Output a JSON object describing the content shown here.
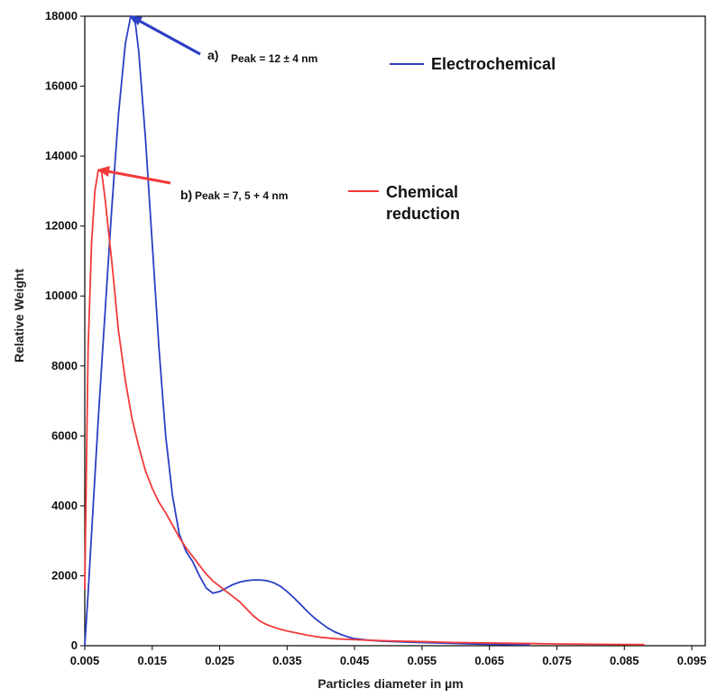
{
  "colors": {
    "electrochemical": "#2b3fc4",
    "chemical": "#f23a3a",
    "axis": "#000000"
  },
  "chart_data": {
    "type": "line",
    "title": "",
    "xlabel": "Particles diameter in  µm",
    "ylabel": "Relative Weight",
    "xlim": [
      0.005,
      0.097
    ],
    "ylim": [
      0,
      18000
    ],
    "x_ticks": [
      0.005,
      0.015,
      0.025,
      0.035,
      0.045,
      0.055,
      0.065,
      0.075,
      0.085,
      0.095
    ],
    "x_tick_labels": [
      "0.005",
      "0.015",
      "0.025",
      "0.035",
      "0.045",
      "0.055",
      "0.065",
      "0.075",
      "0.085",
      "0.095"
    ],
    "y_ticks": [
      0,
      2000,
      4000,
      6000,
      8000,
      10000,
      12000,
      14000,
      16000,
      18000
    ],
    "y_tick_labels": [
      "0",
      "2000",
      "4000",
      "6000",
      "8000",
      "10000",
      "12000",
      "14000",
      "16000",
      "18000"
    ],
    "grid": false,
    "series": [
      {
        "name": "Electrochemical",
        "color": "#2b3fc4",
        "points": [
          [
            0.005,
            0
          ],
          [
            0.0055,
            1500
          ],
          [
            0.006,
            3200
          ],
          [
            0.007,
            6500
          ],
          [
            0.008,
            9500
          ],
          [
            0.009,
            12500
          ],
          [
            0.01,
            15200
          ],
          [
            0.011,
            17200
          ],
          [
            0.0118,
            18000
          ],
          [
            0.0125,
            17800
          ],
          [
            0.013,
            17000
          ],
          [
            0.014,
            14500
          ],
          [
            0.015,
            11500
          ],
          [
            0.016,
            8500
          ],
          [
            0.017,
            6000
          ],
          [
            0.018,
            4300
          ],
          [
            0.019,
            3200
          ],
          [
            0.02,
            2700
          ],
          [
            0.021,
            2400
          ],
          [
            0.022,
            2000
          ],
          [
            0.023,
            1650
          ],
          [
            0.024,
            1500
          ],
          [
            0.025,
            1550
          ],
          [
            0.026,
            1650
          ],
          [
            0.027,
            1750
          ],
          [
            0.028,
            1820
          ],
          [
            0.029,
            1860
          ],
          [
            0.03,
            1880
          ],
          [
            0.031,
            1880
          ],
          [
            0.032,
            1860
          ],
          [
            0.033,
            1800
          ],
          [
            0.034,
            1700
          ],
          [
            0.035,
            1550
          ],
          [
            0.036,
            1370
          ],
          [
            0.037,
            1180
          ],
          [
            0.038,
            980
          ],
          [
            0.039,
            800
          ],
          [
            0.04,
            650
          ],
          [
            0.041,
            510
          ],
          [
            0.042,
            400
          ],
          [
            0.043,
            320
          ],
          [
            0.044,
            250
          ],
          [
            0.045,
            200
          ],
          [
            0.047,
            160
          ],
          [
            0.049,
            130
          ],
          [
            0.051,
            115
          ],
          [
            0.053,
            100
          ],
          [
            0.055,
            90
          ],
          [
            0.058,
            75
          ],
          [
            0.061,
            60
          ],
          [
            0.064,
            45
          ],
          [
            0.067,
            35
          ],
          [
            0.07,
            25
          ],
          [
            0.071,
            20
          ]
        ]
      },
      {
        "name": "Chemical reduction",
        "color": "#f23a3a",
        "points": [
          [
            0.005,
            1600
          ],
          [
            0.0052,
            4500
          ],
          [
            0.0055,
            8500
          ],
          [
            0.006,
            11500
          ],
          [
            0.0065,
            13000
          ],
          [
            0.007,
            13600
          ],
          [
            0.0075,
            13550
          ],
          [
            0.008,
            12800
          ],
          [
            0.009,
            11000
          ],
          [
            0.01,
            9000
          ],
          [
            0.011,
            7600
          ],
          [
            0.012,
            6500
          ],
          [
            0.013,
            5700
          ],
          [
            0.014,
            5000
          ],
          [
            0.015,
            4500
          ],
          [
            0.016,
            4100
          ],
          [
            0.017,
            3800
          ],
          [
            0.018,
            3450
          ],
          [
            0.019,
            3100
          ],
          [
            0.02,
            2800
          ],
          [
            0.021,
            2550
          ],
          [
            0.022,
            2300
          ],
          [
            0.023,
            2050
          ],
          [
            0.024,
            1850
          ],
          [
            0.025,
            1700
          ],
          [
            0.026,
            1550
          ],
          [
            0.027,
            1400
          ],
          [
            0.028,
            1250
          ],
          [
            0.029,
            1050
          ],
          [
            0.03,
            850
          ],
          [
            0.031,
            700
          ],
          [
            0.032,
            600
          ],
          [
            0.033,
            530
          ],
          [
            0.034,
            470
          ],
          [
            0.035,
            420
          ],
          [
            0.036,
            380
          ],
          [
            0.037,
            340
          ],
          [
            0.038,
            300
          ],
          [
            0.039,
            270
          ],
          [
            0.04,
            240
          ],
          [
            0.042,
            200
          ],
          [
            0.044,
            180
          ],
          [
            0.046,
            165
          ],
          [
            0.048,
            150
          ],
          [
            0.05,
            140
          ],
          [
            0.052,
            130
          ],
          [
            0.054,
            120
          ],
          [
            0.056,
            110
          ],
          [
            0.058,
            100
          ],
          [
            0.06,
            90
          ],
          [
            0.064,
            80
          ],
          [
            0.068,
            70
          ],
          [
            0.072,
            60
          ],
          [
            0.076,
            50
          ],
          [
            0.08,
            40
          ],
          [
            0.084,
            35
          ],
          [
            0.088,
            30
          ]
        ]
      }
    ],
    "annotations": [
      {
        "name": "peak-a",
        "label": "a)",
        "text": "Peak =  12    ± 4 nm",
        "color": "#2b3fc4",
        "point": [
          0.0118,
          18000
        ],
        "legend": "Electrochemical"
      },
      {
        "name": "peak-b",
        "label": "b)",
        "text": "Peak = 7, 5   +  4 nm",
        "color": "#f23a3a",
        "point": [
          0.007,
          13600
        ],
        "legend_line1": "Chemical",
        "legend_line2": "reduction"
      }
    ]
  }
}
